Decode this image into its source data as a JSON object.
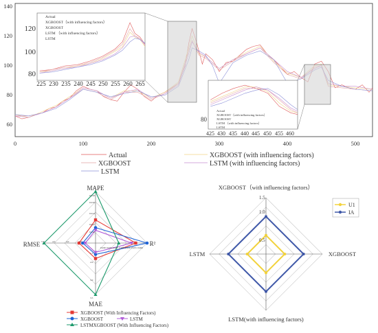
{
  "chart_data": [
    {
      "type": "line",
      "x_ticks": [
        0,
        100,
        200,
        300,
        400,
        500
      ],
      "y_ticks": [
        60,
        80,
        100,
        120,
        140
      ],
      "xlim": [
        0,
        525
      ],
      "ylim": [
        52,
        142
      ],
      "grid": false,
      "legend_position": "bottom",
      "colors": {
        "Actual": "#e05a5a",
        "XGBOOST (with influencing factors)": "#f0d488",
        "XGBOOST": "#e3a3a3",
        "LSTM (with influencing factors)": "#c98ed0",
        "LSTM": "#8a8fd8"
      },
      "legend": [
        {
          "name": "Actual",
          "color": "#e05a5a"
        },
        {
          "name": "XGBOOST (with influencing factors)",
          "color": "#f0d488"
        },
        {
          "name": "XGBOOST",
          "color": "#e3a3a3"
        },
        {
          "name": "LSTM (with influencing factors)",
          "color": "#c98ed0"
        },
        {
          "name": "LSTM",
          "color": "#8a8fd8"
        }
      ],
      "series": [
        {
          "name": "Actual",
          "x": [
            0,
            10,
            20,
            30,
            40,
            50,
            60,
            70,
            80,
            90,
            100,
            110,
            120,
            130,
            140,
            150,
            160,
            170,
            180,
            190,
            200,
            210,
            220,
            230,
            240,
            250,
            255,
            260,
            265,
            270,
            275,
            280,
            290,
            300,
            310,
            320,
            330,
            340,
            350,
            360,
            370,
            380,
            390,
            400,
            410,
            420,
            430,
            440,
            450,
            460,
            470,
            480,
            490,
            500,
            510,
            520,
            525
          ],
          "values": [
            66,
            64,
            65,
            67,
            68,
            71,
            72,
            76,
            78,
            83,
            86,
            84,
            83,
            79,
            77,
            76,
            82,
            87,
            84,
            79,
            76,
            80,
            82,
            85,
            88,
            100,
            115,
            125,
            118,
            110,
            101,
            108,
            104,
            96,
            102,
            103,
            107,
            111,
            113,
            114,
            108,
            104,
            99,
            94,
            96,
            92,
            89,
            101,
            103,
            96,
            85,
            87,
            85,
            84,
            87,
            82,
            85
          ]
        },
        {
          "name": "XGBOOST (with influencing factors)",
          "x": [
            0,
            20,
            40,
            60,
            80,
            100,
            120,
            140,
            160,
            180,
            200,
            220,
            240,
            255,
            260,
            270,
            280,
            300,
            320,
            340,
            360,
            380,
            400,
            420,
            440,
            450,
            460,
            480,
            500,
            525
          ],
          "values": [
            67,
            65,
            69,
            73,
            79,
            85,
            83,
            78,
            83,
            83,
            78,
            82,
            89,
            112,
            120,
            108,
            106,
            98,
            104,
            109,
            113,
            103,
            95,
            92,
            100,
            101,
            87,
            86,
            85,
            84
          ]
        },
        {
          "name": "XGBOOST",
          "x": [
            0,
            20,
            40,
            60,
            80,
            100,
            120,
            140,
            160,
            180,
            200,
            220,
            240,
            255,
            260,
            270,
            280,
            300,
            320,
            340,
            360,
            380,
            400,
            420,
            440,
            450,
            460,
            480,
            500,
            525
          ],
          "values": [
            66,
            66,
            68,
            72,
            78,
            84,
            82,
            77,
            82,
            82,
            77,
            81,
            88,
            110,
            117,
            107,
            105,
            97,
            103,
            108,
            112,
            102,
            94,
            91,
            99,
            100,
            86,
            85,
            84,
            83
          ]
        },
        {
          "name": "LSTM (with influencing factors)",
          "x": [
            0,
            20,
            40,
            60,
            80,
            100,
            120,
            140,
            160,
            180,
            200,
            220,
            240,
            255,
            260,
            270,
            280,
            300,
            320,
            340,
            360,
            380,
            400,
            420,
            440,
            450,
            460,
            480,
            500,
            525
          ],
          "values": [
            66,
            65,
            68,
            72,
            78,
            85,
            83,
            78,
            82,
            84,
            78,
            81,
            87,
            108,
            116,
            109,
            106,
            98,
            104,
            108,
            112,
            104,
            96,
            92,
            98,
            100,
            88,
            86,
            86,
            84
          ]
        },
        {
          "name": "LSTM",
          "x": [
            0,
            20,
            40,
            60,
            80,
            100,
            120,
            140,
            160,
            180,
            200,
            220,
            240,
            255,
            260,
            270,
            280,
            290,
            300,
            320,
            340,
            360,
            380,
            400,
            420,
            440,
            450,
            460,
            480,
            500,
            525
          ],
          "values": [
            67,
            66,
            68,
            71,
            77,
            84,
            82,
            79,
            81,
            83,
            79,
            80,
            86,
            104,
            112,
            110,
            107,
            100,
            88,
            102,
            107,
            110,
            104,
            88,
            91,
            97,
            99,
            90,
            86,
            84,
            83
          ]
        }
      ]
    },
    {
      "type": "line",
      "role": "inset",
      "x_ticks": [
        225,
        230,
        235,
        240,
        245,
        250,
        255,
        260,
        265
      ],
      "y_ticks": [
        80,
        100,
        120
      ],
      "xlim": [
        224,
        267
      ],
      "ylim": [
        76,
        132
      ],
      "legend": [
        "Actual",
        "XGBOOST（with influencing factors）",
        "XGBOOST",
        "LSTM （with influencing factors）",
        "LSTM"
      ],
      "series": [
        {
          "name": "Actual",
          "x": [
            225,
            230,
            235,
            240,
            245,
            250,
            255,
            258,
            261,
            263,
            265,
            267
          ],
          "values": [
            84,
            85,
            88,
            89,
            92,
            96,
            102,
            108,
            124,
            115,
            112,
            106
          ]
        },
        {
          "name": "XGBOOST（with influencing factors）",
          "x": [
            225,
            230,
            235,
            240,
            245,
            250,
            255,
            258,
            261,
            263,
            265,
            267
          ],
          "values": [
            83,
            84,
            86,
            88,
            90,
            94,
            100,
            104,
            116,
            112,
            110,
            104
          ]
        },
        {
          "name": "XGBOOST",
          "x": [
            225,
            230,
            235,
            240,
            245,
            250,
            255,
            258,
            261,
            263,
            265,
            267
          ],
          "values": [
            83,
            85,
            87,
            88,
            91,
            95,
            101,
            106,
            119,
            113,
            111,
            105
          ]
        },
        {
          "name": "LSTM （with influencing factors）",
          "x": [
            225,
            230,
            235,
            240,
            245,
            250,
            255,
            258,
            261,
            263,
            265,
            267
          ],
          "values": [
            82,
            84,
            86,
            87,
            90,
            93,
            98,
            103,
            112,
            113,
            110,
            106
          ]
        },
        {
          "name": "LSTM",
          "x": [
            225,
            230,
            235,
            240,
            245,
            250,
            255,
            258,
            261,
            263,
            265,
            267
          ],
          "values": [
            82,
            83,
            85,
            87,
            89,
            92,
            97,
            101,
            108,
            111,
            110,
            107
          ]
        }
      ]
    },
    {
      "type": "line",
      "role": "inset",
      "x_ticks": [
        425,
        430,
        435,
        440,
        445,
        450,
        455,
        460
      ],
      "y_ticks": [
        80
      ],
      "xlim": [
        424,
        463
      ],
      "ylim": [
        74,
        104
      ],
      "legend": [
        "Actual",
        "XGBOOST（with influencing factors）",
        "XGBOOST",
        "LSTM （with influencing factors）",
        "LSTM"
      ],
      "series": [
        {
          "name": "Actual",
          "x": [
            425,
            430,
            435,
            440,
            445,
            450,
            455,
            460,
            463
          ],
          "values": [
            92,
            96,
            99,
            101,
            99,
            96,
            88,
            84,
            83
          ]
        },
        {
          "name": "XGBOOST（with influencing factors）",
          "x": [
            425,
            430,
            435,
            440,
            445,
            450,
            455,
            460,
            463
          ],
          "values": [
            91,
            94,
            97,
            100,
            100,
            97,
            90,
            85,
            84
          ]
        },
        {
          "name": "XGBOOST",
          "x": [
            425,
            430,
            435,
            440,
            445,
            450,
            455,
            460,
            463
          ],
          "values": [
            90,
            93,
            96,
            99,
            99,
            98,
            92,
            86,
            84
          ]
        },
        {
          "name": "LSTM （with influencing factors）",
          "x": [
            425,
            430,
            435,
            440,
            445,
            450,
            455,
            460,
            463
          ],
          "values": [
            89,
            92,
            95,
            98,
            100,
            98,
            93,
            87,
            85
          ]
        },
        {
          "name": "LSTM",
          "x": [
            425,
            430,
            435,
            440,
            445,
            450,
            455,
            460,
            463
          ],
          "values": [
            88,
            90,
            93,
            96,
            98,
            99,
            95,
            89,
            86
          ]
        }
      ]
    },
    {
      "type": "radar",
      "axes": [
        "MAPE",
        "R²",
        "MAE",
        "RMSE"
      ],
      "axis_ticks": {
        "MAPE": [
          "0.010",
          "0.012",
          "0.014",
          "0.016",
          "0.018"
        ],
        "R²": [
          "0.930",
          "0.935",
          "0.940",
          "0.945",
          "0.950",
          "0.955",
          "0.960"
        ],
        "MAE": [
          "1.5",
          "2.0",
          "3.0",
          "3.5"
        ],
        "RMSE": [
          "2.5",
          "4.0",
          "4.5",
          "5.0"
        ]
      },
      "series": [
        {
          "name": "XGBOOST (With Influencing Factors)",
          "color": "#e53935",
          "marker": "square",
          "values": [
            0.45,
            0.78,
            0.3,
            0.32
          ]
        },
        {
          "name": "XGBOOST",
          "color": "#1e63d6",
          "marker": "circle",
          "values": [
            0.3,
            1.0,
            0.22,
            0.25
          ]
        },
        {
          "name": "LSTM",
          "color": "#b05cd8",
          "marker": "triangle-down",
          "values": [
            0.25,
            0.7,
            0.18,
            0.2
          ]
        },
        {
          "name": "LSTMXGBOOST (With Influencing Factors)",
          "color": "#1d9a6c",
          "marker": "triangle-up",
          "values": [
            1.0,
            0.45,
            1.0,
            1.0
          ]
        }
      ],
      "legend_position": "bottom"
    },
    {
      "type": "radar",
      "axes": [
        "XGBOOST（with influencing factors）",
        "XGBOOST",
        "LSTM(with influencing factors)",
        "LSTM"
      ],
      "ticks": [
        "0.5",
        "1.0",
        "1.5"
      ],
      "rmax": 1.5,
      "series": [
        {
          "name": "U1",
          "color": "#f2d23c",
          "values": [
            0.5,
            0.5,
            0.5,
            0.5
          ]
        },
        {
          "name": "IA",
          "color": "#3e57a8",
          "values": [
            1.0,
            1.0,
            1.0,
            1.0
          ]
        }
      ],
      "legend_position": "top-right"
    }
  ]
}
